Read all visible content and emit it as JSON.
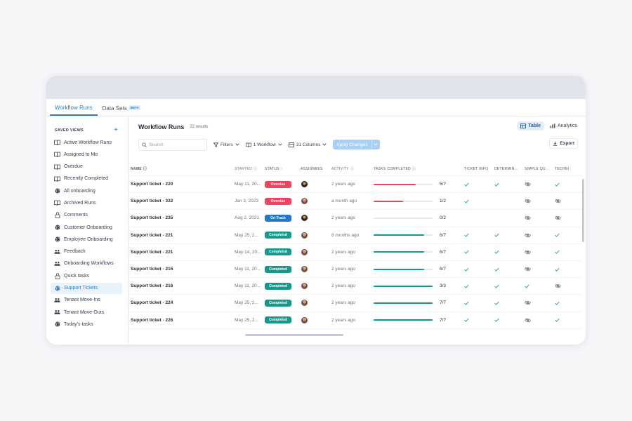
{
  "tabs": [
    {
      "label": "Workflow Runs",
      "active": true
    },
    {
      "label": "Data Sets",
      "badge": "BETA",
      "active": false
    }
  ],
  "sidebar": {
    "header": "SAVED VIEWS",
    "add_icon": "plus-icon",
    "items": [
      {
        "label": "Active Workflow Runs",
        "icon": "book-icon"
      },
      {
        "label": "Assigned to Me",
        "icon": "book-icon"
      },
      {
        "label": "Overdue",
        "icon": "book-icon"
      },
      {
        "label": "Recently Completed",
        "icon": "book-icon"
      },
      {
        "label": "All onboarding",
        "icon": "globe-icon"
      },
      {
        "label": "Archived Runs",
        "icon": "book-icon"
      },
      {
        "label": "Comments",
        "icon": "lock-icon"
      },
      {
        "label": "Customer Onboarding",
        "icon": "globe-icon"
      },
      {
        "label": "Employee Onboarding",
        "icon": "globe-icon"
      },
      {
        "label": "Feedback",
        "icon": "users-icon"
      },
      {
        "label": "Onboarding Workflows",
        "icon": "users-icon"
      },
      {
        "label": "Quick tasks",
        "icon": "lock-icon"
      },
      {
        "label": "Support Tickets",
        "icon": "globe-icon",
        "active": true
      },
      {
        "label": "Tenant Move-Ins",
        "icon": "users-icon"
      },
      {
        "label": "Tenant Move-Outs",
        "icon": "users-icon"
      },
      {
        "label": "Today's tasks",
        "icon": "globe-icon"
      }
    ]
  },
  "header": {
    "title": "Workflow Runs",
    "results": "22 results",
    "table_label": "Table",
    "analytics_label": "Analytics"
  },
  "toolbar": {
    "search_placeholder": "Search",
    "filters_label": "Filters",
    "workflow_label": "1 Workflow",
    "columns_label": "31 Columns",
    "apply_label": "Apply Changes",
    "export_label": "Export"
  },
  "table": {
    "columns": [
      "NAME",
      "STARTED",
      "STATUS",
      "ASSIGNEES",
      "ACTIVITY",
      "TASKS COMPLETED",
      "TICKET INFO",
      "DETERMIN...",
      "SIMPLE QU...",
      "TECHNI"
    ],
    "status_colors": {
      "Overdue": "#ef4461",
      "On-Track": "#1f78c9",
      "Completed": "#139a8c"
    },
    "rows": [
      {
        "name": "Support ticket - 220",
        "started": "May 11, 20...",
        "status": "Overdue",
        "activity": "2 years ago",
        "tasks": "5/7",
        "progress": 0.714,
        "ti": "check",
        "det": "check",
        "sq": "hidden",
        "tech": "check"
      },
      {
        "name": "Support ticket - 332",
        "started": "Jan 3, 2023",
        "status": "Overdue",
        "activity": "a month ago",
        "tasks": "1/2",
        "progress": 0.5,
        "ti": "check",
        "det": "",
        "sq": "hidden",
        "tech": "hidden"
      },
      {
        "name": "Support ticket - 235",
        "started": "Aug 2, 2021",
        "status": "On-Track",
        "activity": "2 years ago",
        "tasks": "0/2",
        "progress": 0,
        "ti": "",
        "det": "",
        "sq": "hidden",
        "tech": "hidden"
      },
      {
        "name": "Support ticket - 221",
        "started": "May 25, 2...",
        "status": "Completed",
        "activity": "8 months ago",
        "tasks": "6/7",
        "progress": 0.857,
        "ti": "check",
        "det": "check",
        "sq": "hidden",
        "tech": "check"
      },
      {
        "name": "Support ticket - 221",
        "started": "May 14, 20...",
        "status": "Completed",
        "activity": "2 years ago",
        "tasks": "6/7",
        "progress": 0.857,
        "ti": "check",
        "det": "check",
        "sq": "hidden",
        "tech": "check"
      },
      {
        "name": "Support ticket - 215",
        "started": "May 11, 20...",
        "status": "Completed",
        "activity": "2 years ago",
        "tasks": "6/7",
        "progress": 0.857,
        "ti": "check",
        "det": "check",
        "sq": "hidden",
        "tech": "check"
      },
      {
        "name": "Support ticket - 216",
        "started": "May 11, 20...",
        "status": "Completed",
        "activity": "2 years ago",
        "tasks": "3/3",
        "progress": 1,
        "ti": "check",
        "det": "check",
        "sq": "check",
        "tech": "hidden"
      },
      {
        "name": "Support ticket - 224",
        "started": "May 25, 2...",
        "status": "Completed",
        "activity": "2 years ago",
        "tasks": "7/7",
        "progress": 1,
        "ti": "check",
        "det": "check",
        "sq": "hidden",
        "tech": "check"
      },
      {
        "name": "Support ticket - 226",
        "started": "May 25, 2...",
        "status": "Completed",
        "activity": "2 years ago",
        "tasks": "7/7",
        "progress": 1,
        "ti": "check",
        "det": "check",
        "sq": "hidden",
        "tech": "check"
      }
    ]
  }
}
